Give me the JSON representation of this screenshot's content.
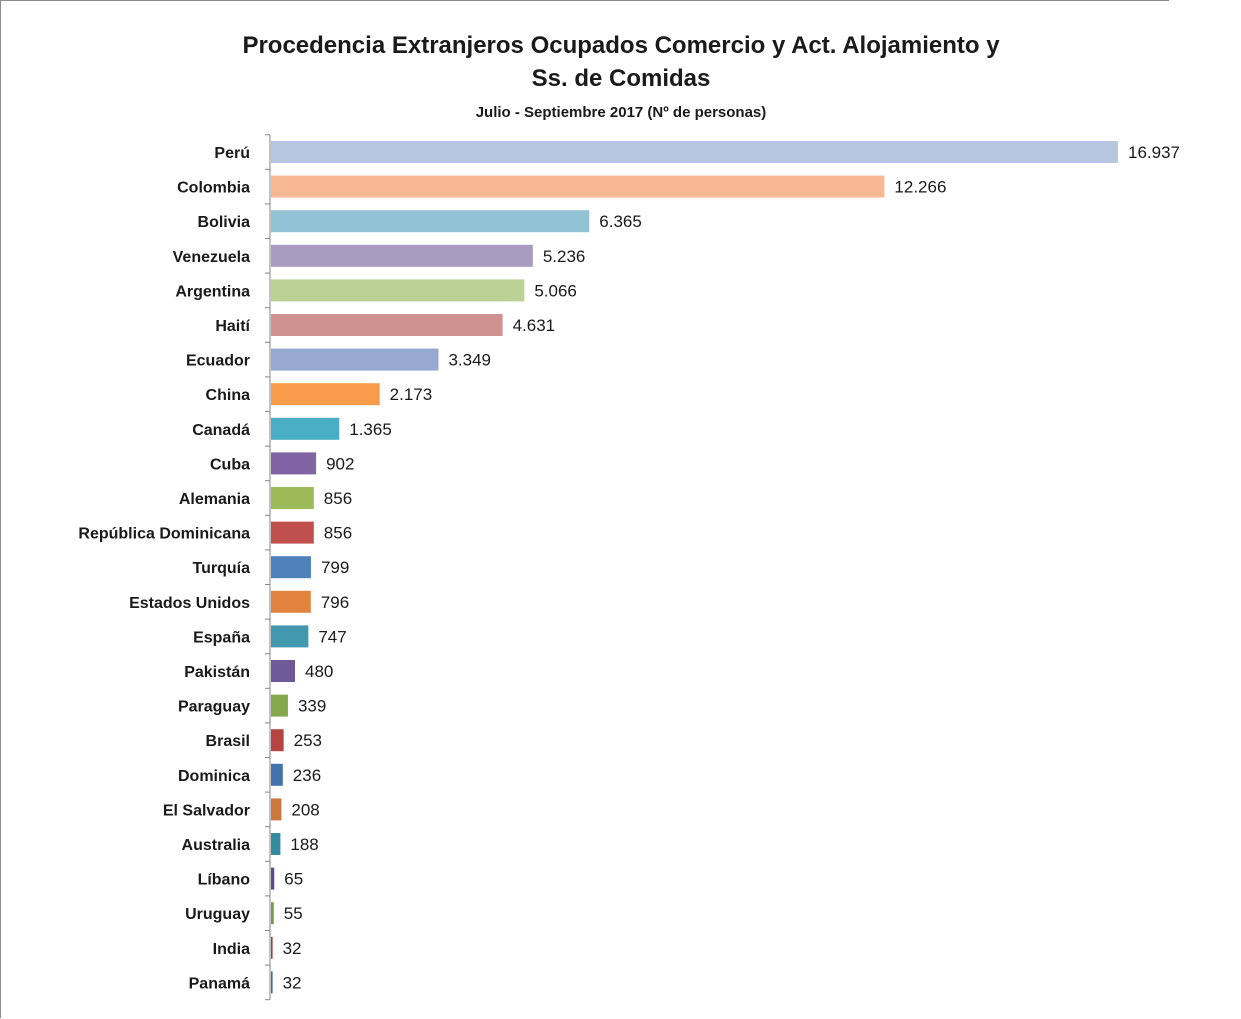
{
  "chart_data": {
    "type": "bar",
    "orientation": "horizontal",
    "title": "Procedencia Extranjeros Ocupados Comercio y Act. Alojamiento y Ss. de Comidas",
    "title_lines": [
      "Procedencia Extranjeros Ocupados Comercio y Act. Alojamiento y",
      "Ss. de Comidas"
    ],
    "subtitle": "Julio - Septiembre  2017 (Nº de personas)",
    "xlabel": "",
    "ylabel": "",
    "grid": false,
    "legend": "none",
    "categories": [
      "Perú",
      "Colombia",
      "Bolivia",
      "Venezuela",
      "Argentina",
      "Haití",
      "Ecuador",
      "China",
      "Canadá",
      "Cuba",
      "Alemania",
      "República Dominicana",
      "Turquía",
      "Estados Unidos",
      "España",
      "Pakistán",
      "Paraguay",
      "Brasil",
      "Dominica",
      "El Salvador",
      "Australia",
      "Líbano",
      "Uruguay",
      "India",
      "Panamá"
    ],
    "values": [
      16937,
      12266,
      6365,
      5236,
      5066,
      4631,
      3349,
      2173,
      1365,
      902,
      856,
      856,
      799,
      796,
      747,
      480,
      339,
      253,
      236,
      208,
      188,
      65,
      55,
      32,
      32
    ],
    "value_labels": [
      "16.937",
      "12.266",
      "6.365",
      "5.236",
      "5.066",
      "4.631",
      "3.349",
      "2.173",
      "1.365",
      "902",
      "856",
      "856",
      "799",
      "796",
      "747",
      "480",
      "339",
      "253",
      "236",
      "208",
      "188",
      "65",
      "55",
      "32",
      "32"
    ],
    "colors": [
      "#B9C6E2",
      "#F8B894",
      "#92C3D4",
      "#AA9BC0",
      "#BBD296",
      "#D09291",
      "#95A9D1",
      "#F79C4B",
      "#4AAEC5",
      "#7F63A3",
      "#9BBB59",
      "#C0504D",
      "#4F81BD",
      "#E0843F",
      "#4198AF",
      "#6E5A99",
      "#86A84C",
      "#B84442",
      "#4373AF",
      "#CB783D",
      "#358B9E",
      "#5F4B8B",
      "#779C47",
      "#A53C3A",
      "#3D6AA0"
    ],
    "xlim": [
      0,
      16937
    ]
  }
}
